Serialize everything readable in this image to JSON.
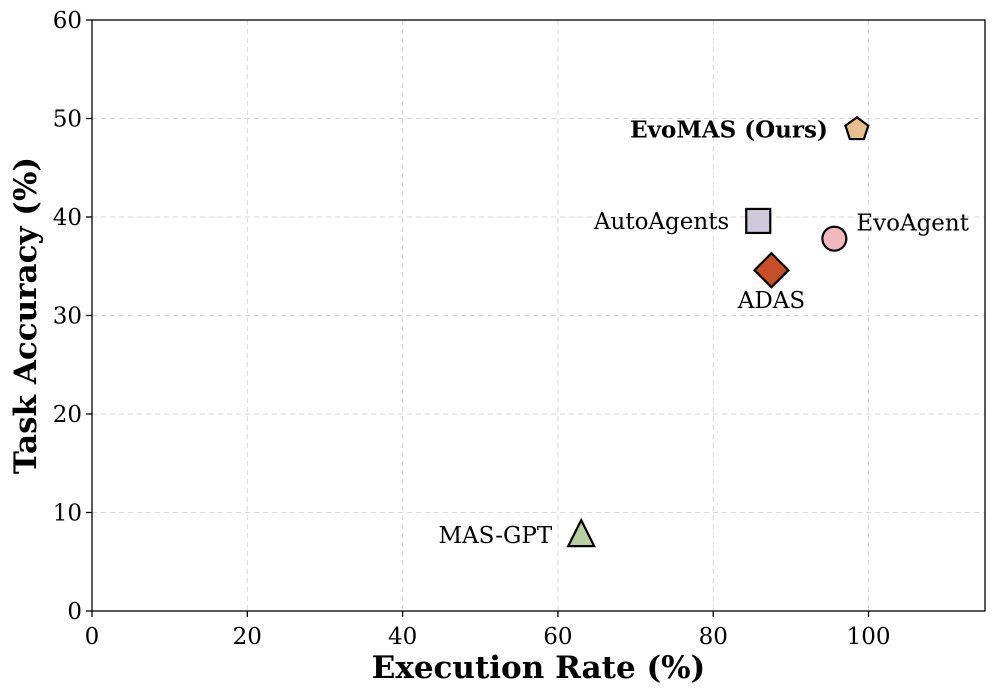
{
  "chart_data": {
    "type": "scatter",
    "title": "",
    "xlabel": "Execution Rate (%)",
    "ylabel": "Task Accuracy (%)",
    "xlim": [
      0,
      115
    ],
    "ylim": [
      0,
      60
    ],
    "xticks": [
      0,
      20,
      40,
      60,
      80,
      100
    ],
    "yticks": [
      0,
      10,
      20,
      30,
      40,
      50,
      60
    ],
    "grid": true,
    "points": [
      {
        "name": "EvoMAS (Ours)",
        "x": 98.5,
        "y": 48.9,
        "marker": "pentagon",
        "color": "#E9C08D",
        "label_position": "left",
        "bold": true
      },
      {
        "name": "AutoAgents",
        "x": 85.8,
        "y": 39.6,
        "marker": "square",
        "color": "#CFCADB",
        "label_position": "left",
        "bold": false
      },
      {
        "name": "EvoAgent",
        "x": 95.6,
        "y": 37.8,
        "marker": "circle",
        "color": "#F2B8BD",
        "label_position": "right",
        "bold": false
      },
      {
        "name": "ADAS",
        "x": 87.5,
        "y": 34.6,
        "marker": "diamond",
        "color": "#C74F28",
        "label_position": "below",
        "bold": false
      },
      {
        "name": "MAS-GPT",
        "x": 63.0,
        "y": 7.7,
        "marker": "triangle",
        "color": "#B7CFA3",
        "label_position": "left",
        "bold": false
      }
    ]
  }
}
